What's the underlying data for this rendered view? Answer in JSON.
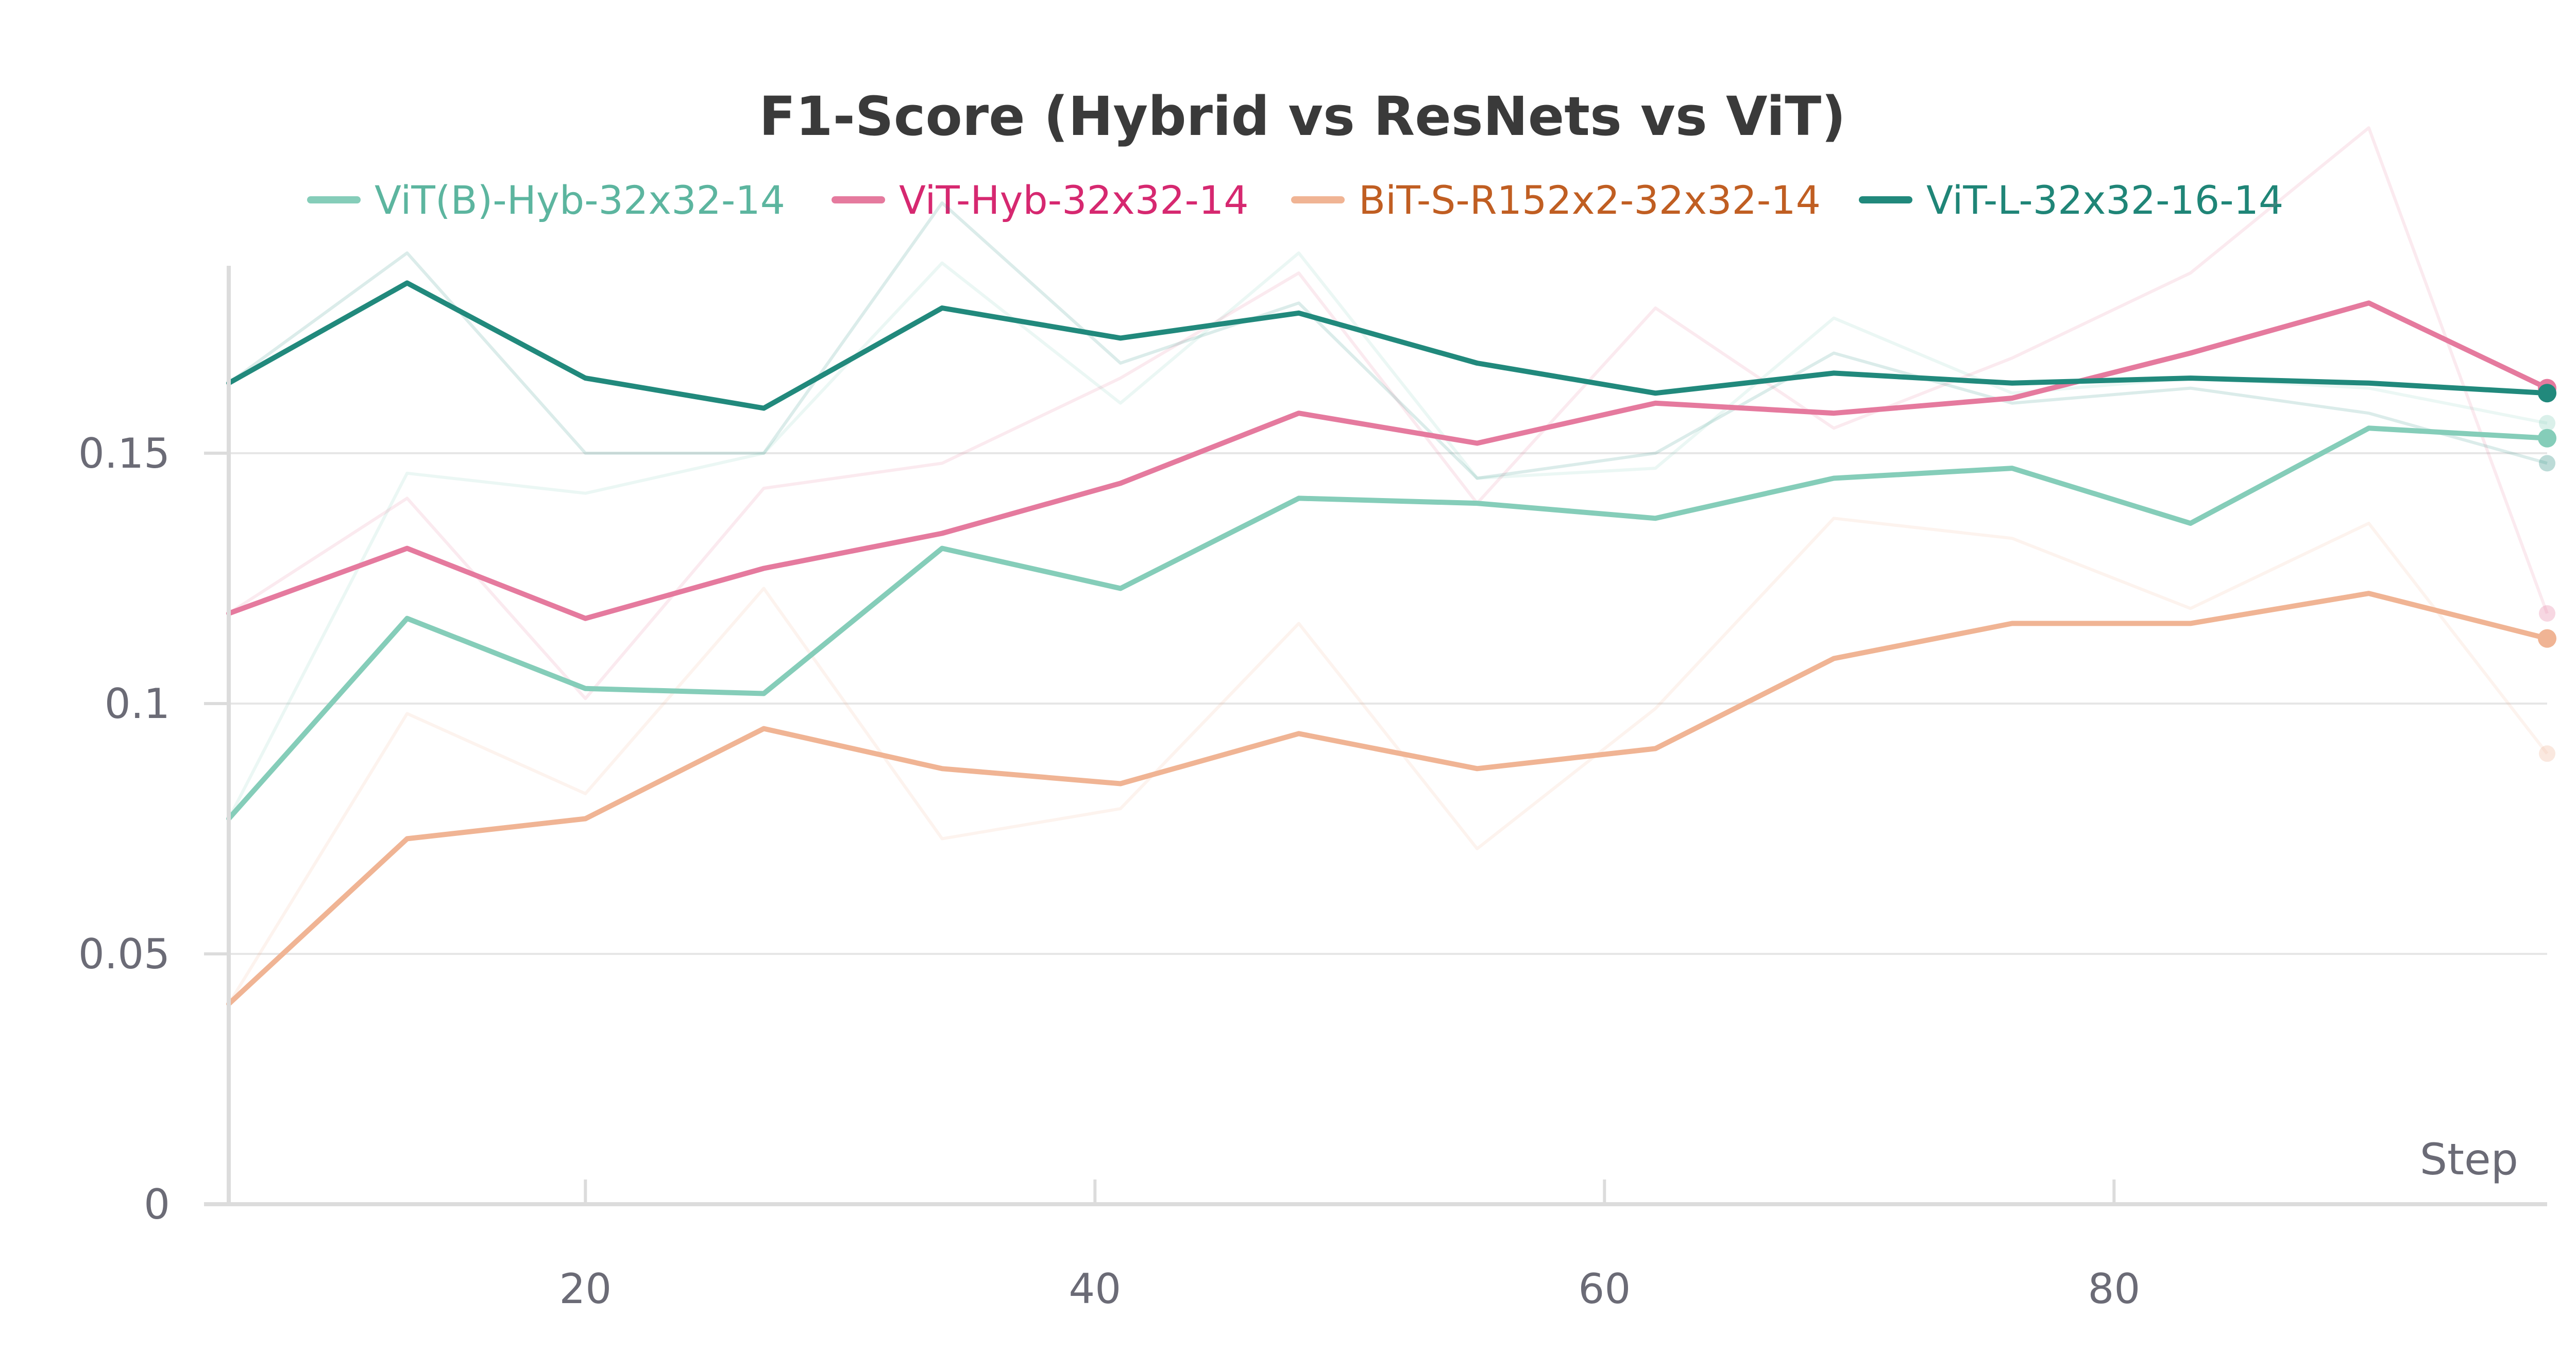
{
  "chart_data": {
    "type": "line",
    "title": "F1-Score (Hybrid vs ResNets vs ViT)",
    "xlabel": "Step",
    "ylabel": "",
    "xlim": [
      6,
      97
    ],
    "ylim": [
      0,
      0.186
    ],
    "x_ticks": [
      {
        "value": 20,
        "label": "20"
      },
      {
        "value": 40,
        "label": "40"
      },
      {
        "value": 60,
        "label": "60"
      },
      {
        "value": 80,
        "label": "80"
      }
    ],
    "y_ticks": [
      {
        "value": 0,
        "label": "0"
      },
      {
        "value": 0.05,
        "label": "0.05"
      },
      {
        "value": 0.1,
        "label": "0.1"
      },
      {
        "value": 0.15,
        "label": "0.15"
      }
    ],
    "grid": true,
    "legend_position": "top-center",
    "x": [
      6,
      13,
      20,
      27,
      34,
      41,
      48,
      55,
      62,
      69,
      76,
      83,
      90,
      97
    ],
    "series": [
      {
        "name": "ViT(B)-Hyb-32x32-14",
        "color": "#85cdb9",
        "label_color": "#5cb59f",
        "smoothed": [
          0.077,
          0.117,
          0.103,
          0.102,
          0.131,
          0.123,
          0.141,
          0.14,
          0.137,
          0.145,
          0.147,
          0.136,
          0.155,
          0.153
        ],
        "raw": [
          0.077,
          0.146,
          0.142,
          0.15,
          0.188,
          0.16,
          0.19,
          0.145,
          0.147,
          0.177,
          0.162,
          0.165,
          0.163,
          0.156
        ]
      },
      {
        "name": "ViT-Hyb-32x32-14",
        "color": "#e57a9e",
        "label_color": "#d62870",
        "smoothed": [
          0.118,
          0.131,
          0.117,
          0.127,
          0.134,
          0.144,
          0.158,
          0.152,
          0.16,
          0.158,
          0.161,
          0.17,
          0.18,
          0.163
        ],
        "raw": [
          0.118,
          0.141,
          0.101,
          0.143,
          0.148,
          0.165,
          0.186,
          0.14,
          0.179,
          0.155,
          0.169,
          0.186,
          0.215,
          0.118
        ]
      },
      {
        "name": "BiT-S-R152x2-32x32-14",
        "color": "#f0b494",
        "label_color": "#c05e22",
        "smoothed": [
          0.04,
          0.073,
          0.077,
          0.095,
          0.087,
          0.084,
          0.094,
          0.087,
          0.091,
          0.109,
          0.116,
          0.116,
          0.122,
          0.113
        ],
        "raw": [
          0.04,
          0.098,
          0.082,
          0.123,
          0.073,
          0.079,
          0.116,
          0.071,
          0.099,
          0.137,
          0.133,
          0.119,
          0.136,
          0.09
        ]
      },
      {
        "name": "ViT-L-32x32-16-14",
        "color": "#21897c",
        "label_color": "#1f8577",
        "smoothed": [
          0.164,
          0.184,
          0.165,
          0.159,
          0.179,
          0.173,
          0.178,
          0.168,
          0.162,
          0.166,
          0.164,
          0.165,
          0.164,
          0.162
        ],
        "raw": [
          0.164,
          0.19,
          0.15,
          0.15,
          0.2,
          0.168,
          0.18,
          0.145,
          0.15,
          0.17,
          0.16,
          0.163,
          0.158,
          0.148
        ]
      }
    ]
  }
}
